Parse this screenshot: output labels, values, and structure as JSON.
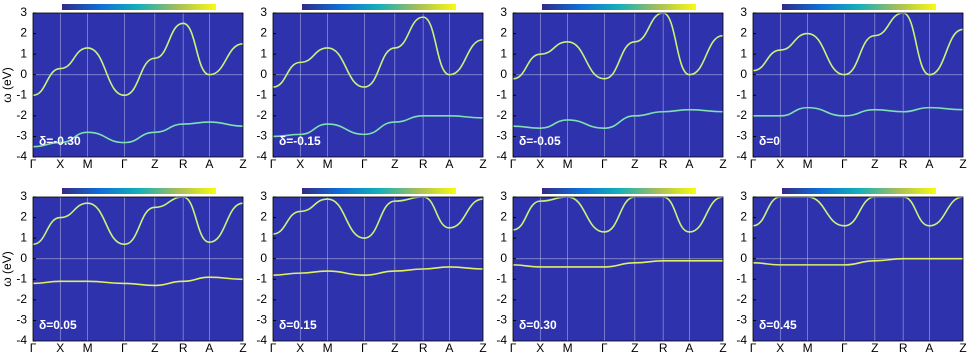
{
  "chart_data": [
    {
      "type": "line",
      "annotation": "δ=-0.30",
      "ylabel": "ω (eV)",
      "categories": [
        "Γ",
        "X",
        "M",
        "Γ",
        "Z",
        "R",
        "A",
        "Z"
      ],
      "ylim": [
        -4,
        3
      ],
      "yticks": [
        -4,
        -3,
        -2,
        -1,
        0,
        1,
        2,
        3
      ],
      "background": "#2e33ad",
      "series": [
        {
          "color": "#c9f27a",
          "values": [
            -1,
            0.3,
            1.3,
            -1,
            0.8,
            2.5,
            0,
            1.5
          ]
        },
        {
          "color": "#7fe0b0",
          "values": [
            -3.5,
            -3.3,
            -2.8,
            -3.3,
            -2.8,
            -2.4,
            -2.3,
            -2.5
          ]
        }
      ]
    },
    {
      "type": "line",
      "annotation": "δ=-0.15",
      "categories": [
        "Γ",
        "X",
        "M",
        "Γ",
        "Z",
        "R",
        "A",
        "Z"
      ],
      "ylim": [
        -4,
        3
      ],
      "yticks": [
        -4,
        -3,
        -2,
        -1,
        0,
        1,
        2,
        3
      ],
      "background": "#2e33ad",
      "series": [
        {
          "color": "#c9f27a",
          "values": [
            -0.6,
            0.6,
            1.3,
            -0.6,
            1.3,
            2.8,
            0,
            1.7
          ]
        },
        {
          "color": "#7fe0b0",
          "values": [
            -3,
            -2.9,
            -2.4,
            -2.9,
            -2.3,
            -2,
            -2,
            -2.1
          ]
        }
      ]
    },
    {
      "type": "line",
      "annotation": "δ=-0.05",
      "categories": [
        "Γ",
        "X",
        "M",
        "Γ",
        "Z",
        "R",
        "A",
        "Z"
      ],
      "ylim": [
        -4,
        3
      ],
      "yticks": [
        -4,
        -3,
        -2,
        -1,
        0,
        1,
        2,
        3
      ],
      "background": "#2e33ad",
      "series": [
        {
          "color": "#c9f27a",
          "values": [
            -0.2,
            1,
            1.6,
            -0.2,
            1.6,
            3,
            0,
            1.9
          ]
        },
        {
          "color": "#7fe0b0",
          "values": [
            -2.5,
            -2.6,
            -2.2,
            -2.6,
            -2,
            -1.8,
            -1.7,
            -1.8
          ]
        }
      ]
    },
    {
      "type": "line",
      "annotation": "δ=0",
      "categories": [
        "Γ",
        "X",
        "M",
        "Γ",
        "Z",
        "R",
        "A",
        "Z"
      ],
      "ylim": [
        -4,
        3
      ],
      "yticks": [
        -4,
        -3,
        -2,
        -1,
        0,
        1,
        2,
        3
      ],
      "background": "#2e33ad",
      "series": [
        {
          "color": "#c9f27a",
          "values": [
            0.2,
            1.2,
            2,
            0,
            1.9,
            3,
            0,
            2.2
          ]
        },
        {
          "color": "#7fe0b0",
          "values": [
            -2,
            -2,
            -1.6,
            -2,
            -1.7,
            -1.8,
            -1.6,
            -1.7
          ]
        }
      ]
    },
    {
      "type": "line",
      "annotation": "δ=0.05",
      "ylabel": "ω (eV)",
      "categories": [
        "Γ",
        "X",
        "M",
        "Γ",
        "Z",
        "R",
        "A",
        "Z"
      ],
      "ylim": [
        -4,
        3
      ],
      "yticks": [
        -4,
        -3,
        -2,
        -1,
        0,
        1,
        2,
        3
      ],
      "background": "#2e33ad",
      "series": [
        {
          "color": "#c9f27a",
          "values": [
            0.7,
            2,
            2.7,
            0.7,
            2.5,
            3,
            0.8,
            2.7
          ]
        },
        {
          "color": "#e0f060",
          "values": [
            -1.2,
            -1.1,
            -1.1,
            -1.2,
            -1.3,
            -1.1,
            -0.9,
            -1
          ]
        }
      ]
    },
    {
      "type": "line",
      "annotation": "δ=0.15",
      "categories": [
        "Γ",
        "X",
        "M",
        "Γ",
        "Z",
        "R",
        "A",
        "Z"
      ],
      "ylim": [
        -4,
        3
      ],
      "yticks": [
        -4,
        -3,
        -2,
        -1,
        0,
        1,
        2,
        3
      ],
      "background": "#2e33ad",
      "series": [
        {
          "color": "#c9f27a",
          "values": [
            1.2,
            2.3,
            2.9,
            1,
            2.8,
            3,
            1.5,
            2.9
          ]
        },
        {
          "color": "#e0f060",
          "values": [
            -0.8,
            -0.7,
            -0.6,
            -0.8,
            -0.6,
            -0.5,
            -0.4,
            -0.5
          ]
        }
      ]
    },
    {
      "type": "line",
      "annotation": "δ=0.30",
      "categories": [
        "Γ",
        "X",
        "M",
        "Γ",
        "Z",
        "R",
        "A",
        "Z"
      ],
      "ylim": [
        -4,
        3
      ],
      "yticks": [
        -4,
        -3,
        -2,
        -1,
        0,
        1,
        2,
        3
      ],
      "background": "#2e33ad",
      "series": [
        {
          "color": "#c9f27a",
          "values": [
            1.4,
            2.8,
            3,
            1.3,
            3,
            3,
            1.3,
            3
          ]
        },
        {
          "color": "#e0f060",
          "values": [
            -0.3,
            -0.4,
            -0.4,
            -0.4,
            -0.2,
            -0.1,
            -0.1,
            -0.1
          ]
        }
      ]
    },
    {
      "type": "line",
      "annotation": "δ=0.45",
      "categories": [
        "Γ",
        "X",
        "M",
        "Γ",
        "Z",
        "R",
        "A",
        "Z"
      ],
      "ylim": [
        -4,
        3
      ],
      "yticks": [
        -4,
        -3,
        -2,
        -1,
        0,
        1,
        2,
        3
      ],
      "background": "#2e33ad",
      "series": [
        {
          "color": "#c9f27a",
          "values": [
            1.6,
            3,
            3,
            1.6,
            3,
            3,
            1.6,
            3
          ]
        },
        {
          "color": "#e0f060",
          "values": [
            -0.2,
            -0.3,
            -0.3,
            -0.3,
            -0.1,
            0,
            0,
            0
          ]
        }
      ]
    }
  ]
}
